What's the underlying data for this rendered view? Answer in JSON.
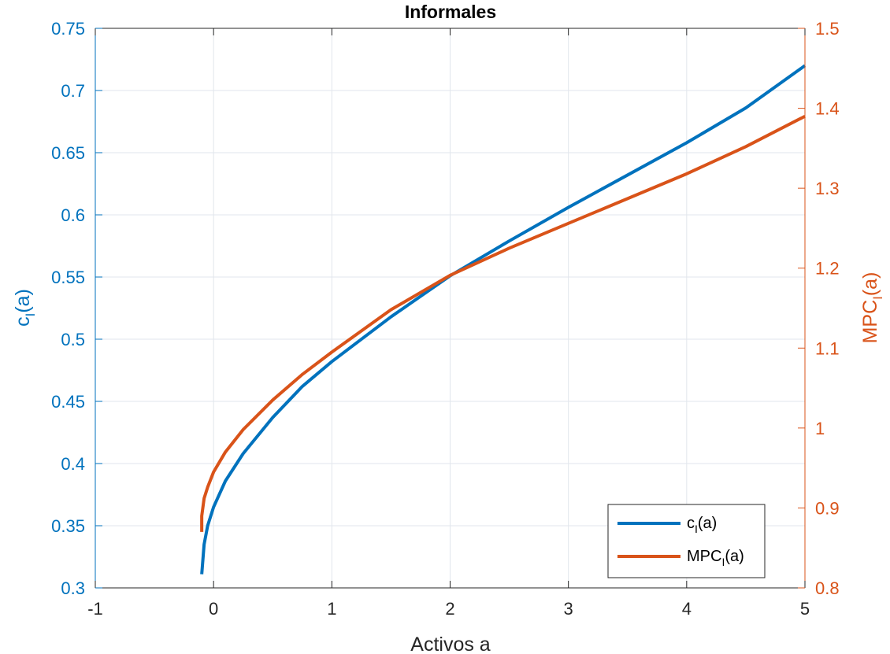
{
  "chart_data": {
    "type": "line",
    "title": "Informales",
    "xlabel": "Activos a",
    "ylabel_left": {
      "base": "c",
      "sub": "I",
      "tail": "(a)"
    },
    "ylabel_right": {
      "base": "MPC",
      "sub": "I",
      "tail": "(a)"
    },
    "xlim": [
      -1,
      5
    ],
    "ylim_left": [
      0.3,
      0.75
    ],
    "ylim_right": [
      0.8,
      1.5
    ],
    "xticks": [
      -1,
      0,
      1,
      2,
      3,
      4,
      5
    ],
    "yticks_left": [
      0.3,
      0.35,
      0.4,
      0.45,
      0.5,
      0.55,
      0.6,
      0.65,
      0.7,
      0.75
    ],
    "yticks_right": [
      0.8,
      0.9,
      1.0,
      1.1,
      1.2,
      1.3,
      1.4,
      1.5
    ],
    "xtick_labels": [
      "-1",
      "0",
      "1",
      "2",
      "3",
      "4",
      "5"
    ],
    "ytick_labels_left": [
      "0.3",
      "0.35",
      "0.4",
      "0.45",
      "0.5",
      "0.55",
      "0.6",
      "0.65",
      "0.7",
      "0.75"
    ],
    "ytick_labels_right": [
      "0.8",
      "0.9",
      "1",
      "1.1",
      "1.2",
      "1.3",
      "1.4",
      "1.5"
    ],
    "grid": true,
    "legend_position": "bottom-right",
    "series": [
      {
        "name": {
          "base": "c",
          "sub": "I",
          "tail": "(a)"
        },
        "axis": "left",
        "color": "#0072BD",
        "x": [
          -0.1,
          -0.08,
          -0.05,
          0,
          0.1,
          0.25,
          0.5,
          0.75,
          1,
          1.5,
          2,
          2.5,
          3,
          3.5,
          4,
          4.5,
          5
        ],
        "y": [
          0.311,
          0.335,
          0.35,
          0.365,
          0.386,
          0.408,
          0.437,
          0.462,
          0.482,
          0.518,
          0.551,
          0.579,
          0.606,
          0.632,
          0.658,
          0.686,
          0.72
        ]
      },
      {
        "name": {
          "base": "MPC",
          "sub": "I",
          "tail": "(a)"
        },
        "axis": "right",
        "color": "#D95319",
        "x": [
          -0.1,
          -0.1,
          -0.08,
          -0.05,
          0,
          0.1,
          0.25,
          0.5,
          0.75,
          1,
          1.5,
          2,
          2.5,
          3,
          3.5,
          4,
          4.5,
          5
        ],
        "y": [
          0.87,
          0.89,
          0.912,
          0.926,
          0.945,
          0.97,
          0.998,
          1.035,
          1.067,
          1.095,
          1.148,
          1.191,
          1.225,
          1.256,
          1.287,
          1.318,
          1.352,
          1.39
        ]
      }
    ]
  }
}
